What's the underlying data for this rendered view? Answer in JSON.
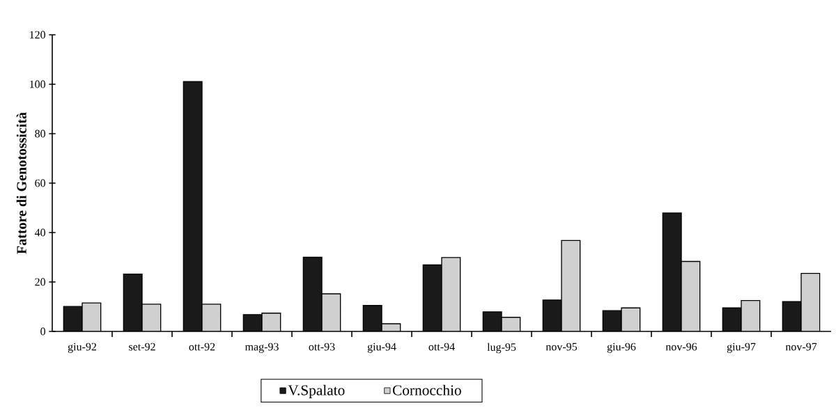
{
  "chart_data": {
    "type": "bar",
    "ylabel": "Fattore di Genotossicità",
    "categories": [
      "giu-92",
      "set-92",
      "ott-92",
      "mag-93",
      "ott-93",
      "giu-94",
      "ott-94",
      "lug-95",
      "nov-95",
      "giu-96",
      "nov-96",
      "giu-97",
      "nov-97"
    ],
    "series": [
      {
        "name": "V.Spalato",
        "color": "#1a1a1a",
        "values": [
          10.1,
          23.2,
          101.1,
          6.8,
          30.0,
          10.5,
          26.9,
          7.9,
          12.7,
          8.4,
          47.9,
          9.5,
          12.1
        ]
      },
      {
        "name": "Cornocchio",
        "color": "#d0d0d0",
        "values": [
          11.5,
          11.0,
          11.0,
          7.4,
          15.2,
          3.1,
          29.9,
          5.7,
          36.8,
          9.5,
          28.3,
          12.5,
          23.5
        ]
      }
    ],
    "ylim": [
      0,
      120
    ],
    "yticks": [
      0,
      20,
      40,
      60,
      80,
      100,
      120
    ],
    "grid": false,
    "legend": "bottom"
  }
}
